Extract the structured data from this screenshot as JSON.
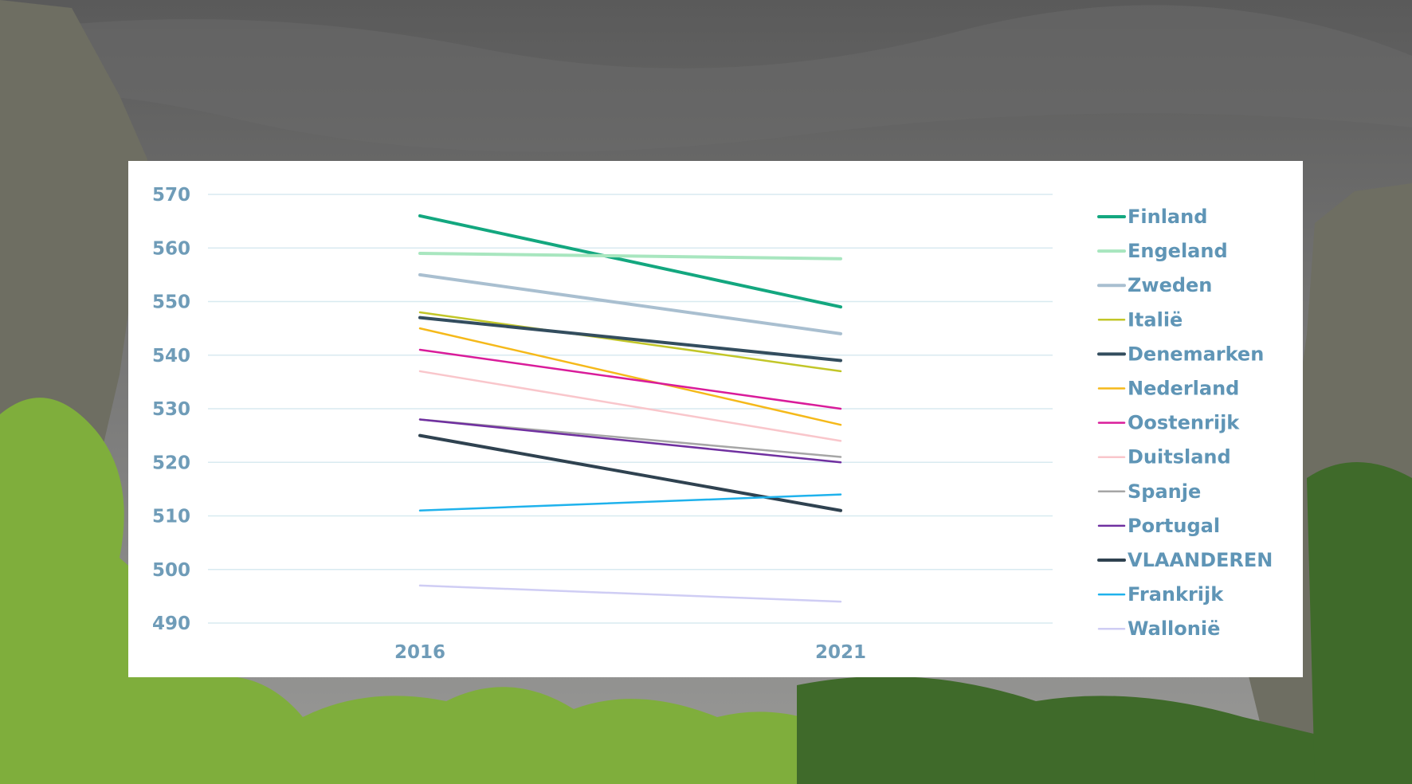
{
  "colors": {
    "sky_top": "#5a5a5a",
    "sky_bottom": "#9a9a98",
    "cliff": "#6e6e62",
    "foliage": "#7fae3c",
    "foliage_dark": "#3f6a2a",
    "gridline": "#d8eaf0",
    "axis_text": "#6f9cb8"
  },
  "chart_data": {
    "type": "line",
    "x": [
      "2016",
      "2021"
    ],
    "ylim": [
      490,
      570
    ],
    "yticks": [
      490,
      500,
      510,
      520,
      530,
      540,
      550,
      560,
      570
    ],
    "grid": true,
    "legend_position": "right",
    "title": "",
    "xlabel": "",
    "ylabel": "",
    "series": [
      {
        "name": "Finland",
        "values": [
          566,
          549
        ],
        "color": "#13a77f",
        "width": 4
      },
      {
        "name": "Engeland",
        "values": [
          559,
          558
        ],
        "color": "#a8e6bf",
        "width": 4
      },
      {
        "name": "Zweden",
        "values": [
          555,
          544
        ],
        "color": "#a9bfd0",
        "width": 4
      },
      {
        "name": "Italië",
        "values": [
          548,
          537
        ],
        "color": "#c2c628",
        "width": 2.5
      },
      {
        "name": "Denemarken",
        "values": [
          547,
          539
        ],
        "color": "#334d5e",
        "width": 4
      },
      {
        "name": "Nederland",
        "values": [
          545,
          527
        ],
        "color": "#f5b91a",
        "width": 2.5
      },
      {
        "name": "Oostenrijk",
        "values": [
          541,
          530
        ],
        "color": "#d91c9a",
        "width": 2.5
      },
      {
        "name": "Duitsland",
        "values": [
          537,
          524
        ],
        "color": "#f9c6cb",
        "width": 2.5
      },
      {
        "name": "Spanje",
        "values": [
          528,
          521
        ],
        "color": "#a6a6a6",
        "width": 2.5
      },
      {
        "name": "Portugal",
        "values": [
          528,
          520
        ],
        "color": "#7030a0",
        "width": 2.5
      },
      {
        "name": "VLAANDEREN",
        "values": [
          525,
          511
        ],
        "color": "#2f4250",
        "width": 4
      },
      {
        "name": "Frankrijk",
        "values": [
          511,
          514
        ],
        "color": "#1fb2ec",
        "width": 2.5
      },
      {
        "name": "Wallonië",
        "values": [
          497,
          494
        ],
        "color": "#cfcdf4",
        "width": 2.5
      }
    ]
  }
}
